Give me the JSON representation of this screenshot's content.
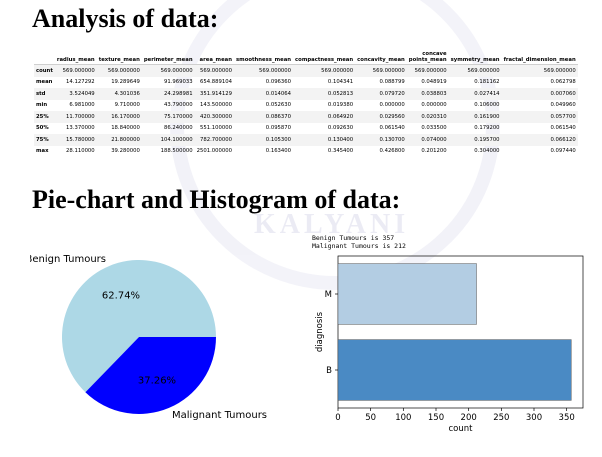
{
  "headings": {
    "analysis": "Analysis of data:",
    "charts": "Pie-chart and Histogram of data:"
  },
  "describe_table": {
    "columns": [
      "radius_mean",
      "texture_mean",
      "perimeter_mean",
      "area_mean",
      "smoothness_mean",
      "compactness_mean",
      "concavity_mean",
      "concave\npoints_mean",
      "symmetry_mean",
      "fractal_dimension_mean"
    ],
    "rows": [
      {
        "label": "count",
        "values": [
          "569.000000",
          "569.000000",
          "569.000000",
          "569.000000",
          "569.000000",
          "569.000000",
          "569.000000",
          "569.000000",
          "569.000000",
          "569.000000"
        ]
      },
      {
        "label": "mean",
        "values": [
          "14.127292",
          "19.289649",
          "91.969033",
          "654.889104",
          "0.096360",
          "0.104341",
          "0.088799",
          "0.048919",
          "0.181162",
          "0.062798"
        ]
      },
      {
        "label": "std",
        "values": [
          "3.524049",
          "4.301036",
          "24.298981",
          "351.914129",
          "0.014064",
          "0.052813",
          "0.079720",
          "0.038803",
          "0.027414",
          "0.007060"
        ]
      },
      {
        "label": "min",
        "values": [
          "6.981000",
          "9.710000",
          "43.790000",
          "143.500000",
          "0.052630",
          "0.019380",
          "0.000000",
          "0.000000",
          "0.106000",
          "0.049960"
        ]
      },
      {
        "label": "25%",
        "values": [
          "11.700000",
          "16.170000",
          "75.170000",
          "420.300000",
          "0.086370",
          "0.064920",
          "0.029560",
          "0.020310",
          "0.161900",
          "0.057700"
        ]
      },
      {
        "label": "50%",
        "values": [
          "13.370000",
          "18.840000",
          "86.240000",
          "551.100000",
          "0.095870",
          "0.092630",
          "0.061540",
          "0.033500",
          "0.179200",
          "0.061540"
        ]
      },
      {
        "label": "75%",
        "values": [
          "15.780000",
          "21.800000",
          "104.100000",
          "782.700000",
          "0.105300",
          "0.130400",
          "0.130700",
          "0.074000",
          "0.195700",
          "0.066120"
        ]
      },
      {
        "label": "max",
        "values": [
          "28.110000",
          "39.280000",
          "188.500000",
          "2501.000000",
          "0.163400",
          "0.345400",
          "0.426800",
          "0.201200",
          "0.304000",
          "0.097440"
        ]
      }
    ]
  },
  "watermark_text": "KALYANI",
  "chart_data": [
    {
      "type": "pie",
      "labels": [
        "Benign Tumours",
        "Malignant Tumours"
      ],
      "values": [
        357,
        212
      ],
      "autopct": [
        "62.74%",
        "37.26%"
      ],
      "colors": [
        "#add8e6",
        "#0000ff"
      ]
    },
    {
      "type": "bar",
      "orientation": "horizontal",
      "info_lines": [
        "Benign Tumours is  357",
        "Malignant Tumours is  212"
      ],
      "categories": [
        "M",
        "B"
      ],
      "values": [
        212,
        357
      ],
      "colors": [
        "#b3cde3",
        "#4a8ac4"
      ],
      "xlabel": "count",
      "ylabel": "diagnosis",
      "xticks": [
        0,
        50,
        100,
        150,
        200,
        250,
        300,
        350
      ],
      "xlim": [
        0,
        375
      ]
    }
  ]
}
